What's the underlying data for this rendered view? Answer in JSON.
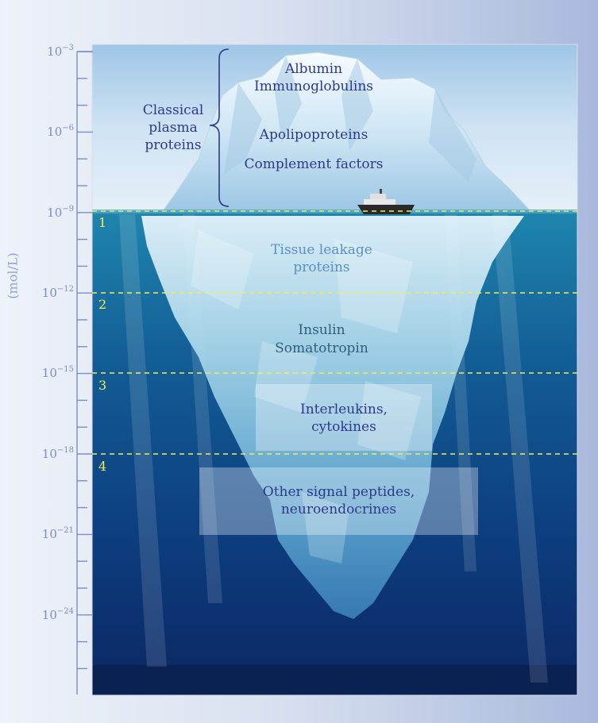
{
  "axis": {
    "unit": "(mol/L)",
    "ticks": [
      {
        "base": "10",
        "exp": "−3"
      },
      {
        "base": "10",
        "exp": "−6"
      },
      {
        "base": "10",
        "exp": "−9"
      },
      {
        "base": "10",
        "exp": "−12"
      },
      {
        "base": "10",
        "exp": "−15"
      },
      {
        "base": "10",
        "exp": "−18"
      },
      {
        "base": "10",
        "exp": "−21"
      },
      {
        "base": "10",
        "exp": "−24"
      }
    ]
  },
  "zones": [
    "1",
    "2",
    "3",
    "4"
  ],
  "labels": {
    "classical": [
      "Classical",
      "plasma",
      "proteins"
    ],
    "albumin": "Albumin",
    "immunoglobulins": "Immunoglobulins",
    "apolipoproteins": "Apolipoproteins",
    "complement": "Complement factors",
    "tissue": [
      "Tissue leakage",
      "proteins"
    ],
    "insulin": "Insulin",
    "somatotropin": "Somatotropin",
    "interleukins": [
      "Interleukins,",
      "cytokines"
    ],
    "other": [
      "Other signal peptides,",
      "neuroendocrines"
    ]
  },
  "colors": {
    "axis": "#7a8fc9",
    "dashed_line": "#f2ef4a",
    "sky": "#cfe3f3",
    "water_top": "#1e7fa6",
    "water_bottom": "#0c2a66"
  }
}
